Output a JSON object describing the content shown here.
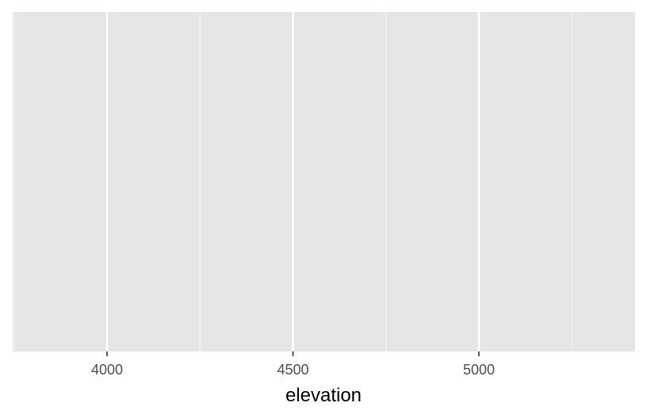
{
  "chart_data": {
    "type": "scatter",
    "title": "",
    "xlabel": "elevation",
    "ylabel": "",
    "x": [],
    "y": [],
    "xlim": [
      3750,
      5420
    ],
    "x_ticks": [
      4000,
      4500,
      5000
    ],
    "x_tick_labels": [
      "4000",
      "4500",
      "5000"
    ],
    "x_minor_ticks": [
      3750,
      4250,
      4750,
      5250
    ],
    "y_ticks": [],
    "grid": true,
    "legend": "none",
    "colors": {
      "panel_background": "#e5e5e5",
      "grid_major": "#ffffff",
      "grid_minor": "#f2f2f2",
      "tick_mark": "#333333",
      "tick_label": "#4d4d4d",
      "axis_title": "#000000"
    }
  }
}
